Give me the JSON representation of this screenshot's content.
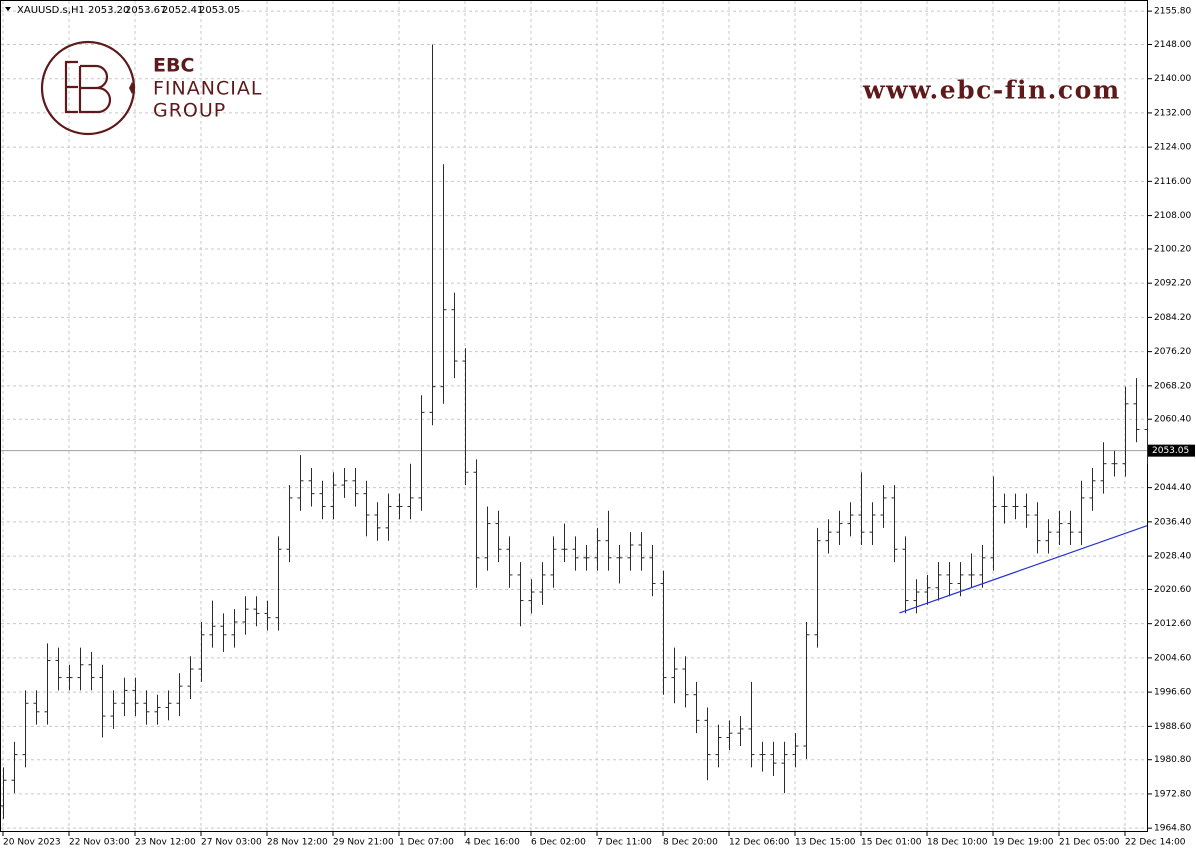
{
  "header": {
    "symbol": "XAUUSD.s,H1",
    "prices": [
      "2053.20",
      "2053.67",
      "2052.41",
      "2053.05"
    ]
  },
  "watermark": {
    "brand": "EBC",
    "line1": "FINANCIAL",
    "line2": "GROUP",
    "url": "www.ebc-fin.com"
  },
  "chart_data": {
    "type": "ohlc",
    "color": "#2b2b2b",
    "grid": true,
    "xlim": [
      0,
      104
    ],
    "xticks": [
      {
        "value": 0,
        "label": "20 Nov 2023"
      },
      {
        "value": 6,
        "label": "22 Nov 03:00"
      },
      {
        "value": 12,
        "label": "23 Nov 12:00"
      },
      {
        "value": 18,
        "label": "27 Nov 03:00"
      },
      {
        "value": 24,
        "label": "28 Nov 12:00"
      },
      {
        "value": 30,
        "label": "29 Nov 21:00"
      },
      {
        "value": 36,
        "label": "1 Dec 07:00"
      },
      {
        "value": 42,
        "label": "4 Dec 16:00"
      },
      {
        "value": 48,
        "label": "6 Dec 02:00"
      },
      {
        "value": 54,
        "label": "7 Dec 11:00"
      },
      {
        "value": 60,
        "label": "8 Dec 20:00"
      },
      {
        "value": 66,
        "label": "12 Dec 06:00"
      },
      {
        "value": 72,
        "label": "13 Dec 15:00"
      },
      {
        "value": 78,
        "label": "15 Dec 01:00"
      },
      {
        "value": 84,
        "label": "18 Dec 10:00"
      },
      {
        "value": 90,
        "label": "19 Dec 19:00"
      },
      {
        "value": 96,
        "label": "21 Dec 05:00"
      },
      {
        "value": 102,
        "label": "22 Dec 14:00"
      }
    ],
    "ylim": [
      1963.9,
      2158.4
    ],
    "yticks": [
      {
        "value": 2155.8,
        "label": "2155.80"
      },
      {
        "value": 2148,
        "label": "2148.00"
      },
      {
        "value": 2140,
        "label": "2140.00"
      },
      {
        "value": 2132,
        "label": "2132.00"
      },
      {
        "value": 2124,
        "label": "2124.00"
      },
      {
        "value": 2116,
        "label": "2116.00"
      },
      {
        "value": 2108,
        "label": "2108.00"
      },
      {
        "value": 2100.2,
        "label": "2100.20"
      },
      {
        "value": 2092.2,
        "label": "2092.20"
      },
      {
        "value": 2084.2,
        "label": "2084.20"
      },
      {
        "value": 2076.2,
        "label": "2076.20"
      },
      {
        "value": 2068.2,
        "label": "2068.20"
      },
      {
        "value": 2060.4,
        "label": "2060.40"
      },
      {
        "value": 2044.4,
        "label": "2044.40"
      },
      {
        "value": 2036.4,
        "label": "2036.40"
      },
      {
        "value": 2028.4,
        "label": "2028.40"
      },
      {
        "value": 2020.6,
        "label": "2020.60"
      },
      {
        "value": 2012.6,
        "label": "2012.60"
      },
      {
        "value": 2004.6,
        "label": "2004.60"
      },
      {
        "value": 1996.6,
        "label": "1996.60"
      },
      {
        "value": 1988.6,
        "label": "1988.60"
      },
      {
        "value": 1980.8,
        "label": "1980.80"
      },
      {
        "value": 1972.8,
        "label": "1972.80"
      },
      {
        "value": 1964.8,
        "label": "1964.80"
      }
    ],
    "last_price": {
      "value": 2053.05,
      "label": "2053.05",
      "color": "#a0a0a0"
    },
    "trendline": {
      "color": "#2633d6",
      "x": [
        81.5,
        104.1
      ],
      "values": [
        2015.1,
        2035.5
      ]
    },
    "open": [
      1970,
      1976,
      1982,
      1994,
      1992,
      2004,
      2000,
      2000,
      2003,
      2000,
      1991,
      1994,
      1997,
      1994,
      1992,
      1993,
      1994,
      1998,
      2002,
      2010,
      2012,
      2010,
      2013,
      2016,
      2015,
      2014,
      2030,
      2042,
      2046,
      2043,
      2040,
      2045,
      2046,
      2043,
      2038,
      2035,
      2040,
      2040,
      2042,
      2062,
      2068,
      2086,
      2074,
      2048,
      2028,
      2036,
      2030,
      2024,
      2018,
      2020,
      2024,
      2030,
      2030,
      2028,
      2028,
      2032,
      2028,
      2028,
      2031,
      2028,
      2022,
      2000,
      2002,
      1996,
      1990,
      1982,
      1986,
      1987,
      1988,
      1982,
      1982,
      1980,
      1982,
      1984,
      2010,
      2032,
      2034,
      2036,
      2038,
      2034,
      2038,
      2042,
      2030,
      2018,
      2020,
      2021,
      2024,
      2022,
      2024,
      2024,
      2028,
      2040,
      2040,
      2040,
      2038,
      2032,
      2034,
      2036,
      2034,
      2042,
      2046,
      2050,
      2050,
      2064,
      2058
    ],
    "high": [
      1979,
      1985,
      1997,
      1997,
      2008,
      2007,
      2003,
      2007,
      2006,
      2003,
      1997,
      2000,
      2000,
      1997,
      1996,
      1997,
      2001,
      2005,
      2013,
      2018,
      2015,
      2016,
      2019,
      2019,
      2018,
      2033,
      2045,
      2052,
      2049,
      2046,
      2048,
      2049,
      2049,
      2046,
      2041,
      2043,
      2043,
      2050,
      2066,
      2148,
      2120,
      2090,
      2077,
      2051,
      2040,
      2039,
      2033,
      2027,
      2023,
      2027,
      2033,
      2036,
      2033,
      2031,
      2035,
      2039,
      2031,
      2034,
      2034,
      2031,
      2025,
      2007,
      2005,
      1999,
      1993,
      1989,
      1990,
      1991,
      1999,
      1985,
      1985,
      1985,
      1987,
      2013,
      2035,
      2037,
      2039,
      2041,
      2048,
      2041,
      2045,
      2045,
      2033,
      2023,
      2024,
      2027,
      2027,
      2027,
      2029,
      2031,
      2047,
      2043,
      2043,
      2043,
      2041,
      2037,
      2039,
      2039,
      2046,
      2049,
      2055,
      2053,
      2068,
      2070,
      2061
    ],
    "low": [
      1967,
      1973,
      1979,
      1989,
      1989,
      1997,
      1997,
      1997,
      1997,
      1986,
      1988,
      1991,
      1991,
      1989,
      1989,
      1990,
      1991,
      1995,
      1999,
      2007,
      2006,
      2007,
      2010,
      2012,
      2011,
      2011,
      2027,
      2039,
      2040,
      2037,
      2037,
      2042,
      2040,
      2033,
      2032,
      2032,
      2037,
      2037,
      2039,
      2059,
      2064,
      2070,
      2045,
      2021,
      2025,
      2027,
      2021,
      2012,
      2015,
      2017,
      2021,
      2027,
      2025,
      2025,
      2025,
      2025,
      2022,
      2025,
      2025,
      2019,
      1996,
      1994,
      1993,
      1987,
      1976,
      1979,
      1983,
      1984,
      1979,
      1978,
      1977,
      1973,
      1979,
      1981,
      2007,
      2029,
      2031,
      2033,
      2031,
      2031,
      2035,
      2027,
      2015,
      2015,
      2017,
      2018,
      2019,
      2019,
      2021,
      2021,
      2025,
      2036,
      2037,
      2035,
      2029,
      2029,
      2031,
      2031,
      2031,
      2039,
      2043,
      2047,
      2047,
      2055,
      2050
    ],
    "close": [
      1976,
      1982,
      1994,
      1992,
      2004,
      2000,
      2000,
      2003,
      2000,
      1991,
      1994,
      1997,
      1994,
      1992,
      1993,
      1994,
      1998,
      2002,
      2010,
      2012,
      2010,
      2013,
      2016,
      2015,
      2014,
      2030,
      2042,
      2046,
      2043,
      2040,
      2045,
      2046,
      2043,
      2038,
      2035,
      2040,
      2040,
      2042,
      2062,
      2068,
      2086,
      2074,
      2048,
      2028,
      2036,
      2030,
      2024,
      2018,
      2020,
      2024,
      2030,
      2030,
      2028,
      2028,
      2032,
      2028,
      2028,
      2031,
      2028,
      2022,
      2000,
      2002,
      1996,
      1990,
      1982,
      1986,
      1987,
      1988,
      1982,
      1982,
      1980,
      1982,
      1984,
      2010,
      2032,
      2034,
      2036,
      2038,
      2034,
      2038,
      2042,
      2030,
      2018,
      2020,
      2021,
      2024,
      2022,
      2024,
      2024,
      2028,
      2040,
      2040,
      2040,
      2038,
      2032,
      2034,
      2036,
      2034,
      2042,
      2046,
      2050,
      2050,
      2064,
      2058,
      2053.05
    ]
  }
}
